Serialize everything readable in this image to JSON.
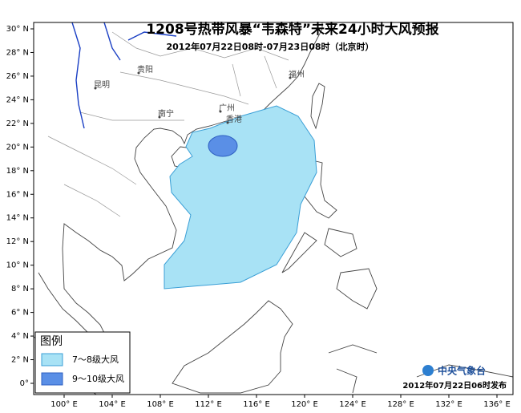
{
  "title": "1208号热带风暴“韦森特”未来24小时大风预报",
  "subtitle": "2012年07月22日08时-07月23日08时（北京时）",
  "axes": {
    "latitude_labels": [
      "30° N",
      "28° N",
      "26° N",
      "24° N",
      "22° N",
      "20° N",
      "18° N",
      "16° N",
      "14° N",
      "12° N",
      "10° N",
      "8° N",
      "6° N",
      "4° N",
      "2° N",
      "0°"
    ],
    "longitude_labels": [
      "100° E",
      "104° E",
      "108° E",
      "112° E",
      "116° E",
      "120° E",
      "124° E",
      "128° E",
      "132° E",
      "136° E"
    ]
  },
  "places": [
    "贵阳",
    "昆明",
    "南宁",
    "广州",
    "香港",
    "福州"
  ],
  "legend": {
    "title": "图例",
    "items": [
      "7～8级大风",
      "9～10级大风"
    ]
  },
  "footer": {
    "agency": "中央气象台",
    "issued": "2012年07月22日06时发布"
  }
}
